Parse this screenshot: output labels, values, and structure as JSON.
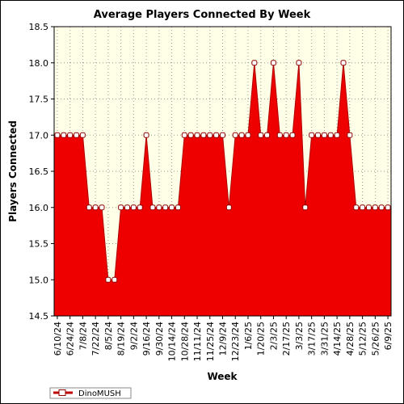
{
  "chart_data": {
    "type": "area",
    "title": "Average Players Connected By Week",
    "xlabel": "Week",
    "ylabel": "Players Connected",
    "ylim": [
      14.5,
      18.5
    ],
    "yticks": [
      "14.5",
      "15.0",
      "15.5",
      "16.0",
      "16.5",
      "17.0",
      "17.5",
      "18.0",
      "18.5"
    ],
    "x": [
      "6/10/24",
      "6/17/24",
      "6/24/24",
      "7/1/24",
      "7/8/24",
      "7/15/24",
      "7/22/24",
      "7/29/24",
      "8/5/24",
      "8/12/24",
      "8/19/24",
      "8/26/24",
      "9/2/24",
      "9/9/24",
      "9/16/24",
      "9/23/24",
      "9/30/24",
      "10/7/24",
      "10/14/24",
      "10/21/24",
      "10/28/24",
      "11/4/24",
      "11/11/24",
      "11/18/24",
      "11/25/24",
      "12/2/24",
      "12/9/24",
      "12/16/24",
      "12/23/24",
      "12/30/24",
      "1/6/25",
      "1/13/25",
      "1/20/25",
      "1/27/25",
      "2/3/25",
      "2/10/25",
      "2/17/25",
      "2/24/25",
      "3/3/25",
      "3/10/25",
      "3/17/25",
      "3/24/25",
      "3/31/25",
      "4/7/25",
      "4/14/25",
      "4/21/25",
      "4/28/25",
      "5/5/25",
      "5/12/25",
      "5/19/25",
      "5/26/25",
      "6/2/25",
      "6/9/25"
    ],
    "xtick_labels": [
      "6/10/24",
      "6/24/24",
      "7/8/24",
      "7/22/24",
      "8/5/24",
      "8/19/24",
      "9/2/24",
      "9/16/24",
      "9/30/24",
      "10/14/24",
      "10/28/24",
      "11/11/24",
      "11/25/24",
      "12/9/24",
      "12/23/24",
      "1/6/25",
      "1/20/25",
      "2/3/25",
      "2/17/25",
      "3/3/25",
      "3/17/25",
      "3/31/25",
      "4/14/25",
      "4/28/25",
      "5/12/25",
      "5/26/25",
      "6/9/25"
    ],
    "series": [
      {
        "name": "DinoMUSH",
        "color": "#ee0000",
        "values": [
          17,
          17,
          17,
          17,
          17,
          16,
          16,
          16,
          15,
          15,
          16,
          16,
          16,
          16,
          17,
          16,
          16,
          16,
          16,
          16,
          17,
          17,
          17,
          17,
          17,
          17,
          17,
          16,
          17,
          17,
          17,
          18,
          17,
          17,
          18,
          17,
          17,
          17,
          18,
          16,
          17,
          17,
          17,
          17,
          17,
          18,
          17,
          16,
          16,
          16,
          16,
          16,
          16
        ]
      }
    ],
    "grid": true,
    "legend": "bottom-left",
    "plot_background": "#ffffe8"
  }
}
